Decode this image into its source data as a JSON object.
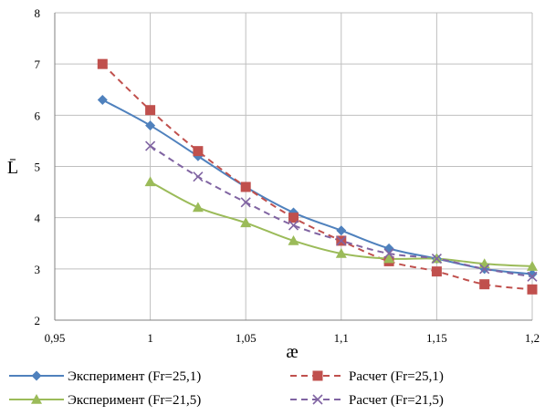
{
  "chart_data": {
    "type": "line",
    "xlabel": "æ",
    "ylabel": "L̄",
    "xlim": [
      0.95,
      1.2
    ],
    "ylim": [
      2,
      8
    ],
    "grid": true,
    "legend_position": "bottom",
    "x_ticks": [
      "0,95",
      "1",
      "1,05",
      "1,1",
      "1,15",
      "1,2"
    ],
    "x_tick_values": [
      0.95,
      1.0,
      1.05,
      1.1,
      1.15,
      1.2
    ],
    "y_ticks": [
      "2",
      "3",
      "4",
      "5",
      "6",
      "7",
      "8"
    ],
    "y_tick_values": [
      2,
      3,
      4,
      5,
      6,
      7,
      8
    ],
    "series": [
      {
        "name": "Эксперимент (Fr=25,1)",
        "color": "#4f81bd",
        "line_style": "solid",
        "marker": "diamond",
        "x": [
          0.975,
          1.0,
          1.025,
          1.05,
          1.075,
          1.1,
          1.125,
          1.15,
          1.175,
          1.2
        ],
        "y": [
          6.3,
          5.8,
          5.2,
          4.6,
          4.1,
          3.75,
          3.4,
          3.2,
          3.0,
          2.9
        ]
      },
      {
        "name": "Расчет (Fr=25,1)",
        "color": "#c0504d",
        "line_style": "dashed",
        "marker": "square",
        "x": [
          0.975,
          1.0,
          1.025,
          1.05,
          1.075,
          1.1,
          1.125,
          1.15,
          1.175,
          1.2
        ],
        "y": [
          7.0,
          6.1,
          5.3,
          4.6,
          4.0,
          3.55,
          3.15,
          2.95,
          2.7,
          2.6
        ]
      },
      {
        "name": "Эксперимент (Fr=21,5)",
        "color": "#9bbb59",
        "line_style": "solid",
        "marker": "triangle",
        "x": [
          1.0,
          1.025,
          1.05,
          1.075,
          1.1,
          1.125,
          1.15,
          1.175,
          1.2
        ],
        "y": [
          4.7,
          4.2,
          3.9,
          3.55,
          3.3,
          3.2,
          3.2,
          3.1,
          3.05
        ]
      },
      {
        "name": "Расчет (Fr=21,5)",
        "color": "#8064a2",
        "line_style": "dashed",
        "marker": "x",
        "x": [
          1.0,
          1.025,
          1.05,
          1.075,
          1.1,
          1.125,
          1.15,
          1.175,
          1.2
        ],
        "y": [
          5.4,
          4.8,
          4.3,
          3.85,
          3.55,
          3.3,
          3.2,
          3.0,
          2.85
        ]
      }
    ]
  }
}
